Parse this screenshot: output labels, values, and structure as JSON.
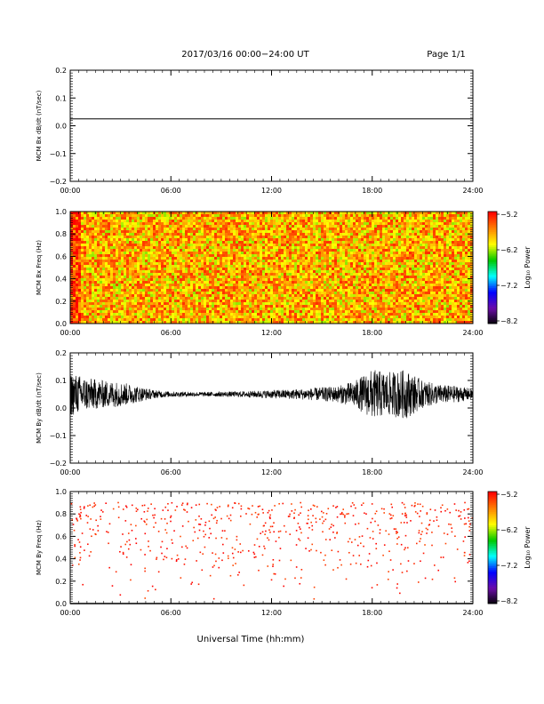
{
  "header": {
    "title": "2017/03/16  00:00−24:00 UT",
    "page": "Page 1/1"
  },
  "xlabel": "Universal Time (hh:mm)",
  "colors": {
    "axis": "#000000",
    "spectrogram_scale": [
      "#000000",
      "#6a0ca8",
      "#0000ff",
      "#00ffff",
      "#00c800",
      "#ffff00",
      "#ff8000",
      "#ff0000"
    ]
  },
  "chart_data": [
    {
      "type": "line",
      "ylabel": "MCM Bx dB/dt (nT/sec)",
      "xlim": [
        0,
        24
      ],
      "x_ticks": [
        "00:00",
        "06:00",
        "12:00",
        "18:00",
        "24:00"
      ],
      "ylim": [
        -0.2,
        0.2
      ],
      "y_ticks": [
        "0.2",
        "0.1",
        "0.0",
        "−0.1",
        "−0.2"
      ],
      "series": [
        {
          "x": [
            0,
            24
          ],
          "y": [
            0.025,
            0.025
          ]
        }
      ]
    },
    {
      "type": "heatmap",
      "ylabel": "MCM Bx Freq (Hz)",
      "xlim": [
        0,
        24
      ],
      "x_ticks": [
        "00:00",
        "06:00",
        "12:00",
        "18:00",
        "24:00"
      ],
      "ylim": [
        0,
        1
      ],
      "y_ticks": [
        "1.0",
        "0.8",
        "0.6",
        "0.4",
        "0.2",
        "0.0"
      ],
      "colorbar": {
        "label": "Log₁₀ Power",
        "ticks": [
          "−5.2",
          "−6.2",
          "−7.2",
          "−8.2"
        ],
        "range": [
          -8.2,
          -5.2
        ]
      },
      "description_level": {
        "mean_log_power": -5.8,
        "early_hours_log_power": -5.4
      }
    },
    {
      "type": "line",
      "ylabel": "MCM By dB/dt (nT/sec)",
      "xlim": [
        0,
        24
      ],
      "x_ticks": [
        "00:00",
        "06:00",
        "12:00",
        "18:00",
        "24:00"
      ],
      "ylim": [
        -0.2,
        0.2
      ],
      "y_ticks": [
        "0.2",
        "0.1",
        "0.0",
        "−0.1",
        "−0.2"
      ],
      "series": [
        {
          "baseline": 0.05,
          "x": [
            0,
            1,
            2,
            3,
            4,
            5,
            6,
            8,
            10,
            12,
            14,
            16,
            17,
            18,
            19,
            20,
            21,
            22,
            23,
            24
          ],
          "amplitude": [
            0.08,
            0.06,
            0.05,
            0.045,
            0.03,
            0.015,
            0.01,
            0.008,
            0.01,
            0.015,
            0.02,
            0.03,
            0.05,
            0.09,
            0.08,
            0.09,
            0.05,
            0.035,
            0.03,
            0.02
          ]
        }
      ]
    },
    {
      "type": "scatter",
      "ylabel": "MCM By Freq (Hz)",
      "xlim": [
        0,
        24
      ],
      "x_ticks": [
        "00:00",
        "06:00",
        "12:00",
        "18:00",
        "24:00"
      ],
      "ylim": [
        0,
        1
      ],
      "y_ticks": [
        "1.0",
        "0.8",
        "0.6",
        "0.4",
        "0.2",
        "0.0"
      ],
      "colorbar": {
        "label": "Log₁₀ Power",
        "ticks": [
          "−5.2",
          "−6.2",
          "−7.2",
          "−8.2"
        ],
        "range": [
          -8.2,
          -5.2
        ]
      },
      "point_log_power": -5.3
    }
  ]
}
